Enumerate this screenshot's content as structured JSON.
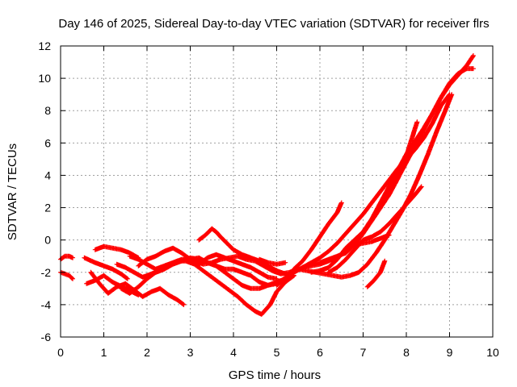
{
  "chart_data": {
    "type": "scatter",
    "title": "Day 146 of 2025, Sidereal Day-to-day VTEC variation (SDTVAR) for receiver flrs",
    "xlabel": "GPS time / hours",
    "ylabel": "SDTVAR / TECUs",
    "xlim": [
      0,
      10
    ],
    "ylim": [
      -6,
      12
    ],
    "xticks": [
      "0",
      "1",
      "2",
      "3",
      "4",
      "5",
      "6",
      "7",
      "8",
      "9",
      "10"
    ],
    "yticks": [
      "-6",
      "-4",
      "-2",
      "0",
      "2",
      "4",
      "6",
      "8",
      "10",
      "12"
    ],
    "grid": true,
    "marker": "+",
    "color": "#ff0000",
    "series": [
      {
        "x": [
          0.0,
          0.1,
          0.2,
          0.28
        ],
        "y": [
          -1.2,
          -1.0,
          -1.0,
          -1.1
        ]
      },
      {
        "x": [
          0.0,
          0.1,
          0.2,
          0.28
        ],
        "y": [
          -2.0,
          -2.1,
          -2.2,
          -2.4
        ]
      },
      {
        "x": [
          0.55,
          0.8,
          1.0,
          1.2,
          1.4,
          1.55
        ],
        "y": [
          -1.1,
          -1.4,
          -1.6,
          -1.8,
          -2.1,
          -2.4
        ]
      },
      {
        "x": [
          0.6,
          0.8,
          1.0,
          1.2,
          1.5,
          1.8
        ],
        "y": [
          -2.7,
          -2.5,
          -2.2,
          -2.6,
          -3.0,
          -3.4
        ]
      },
      {
        "x": [
          0.7,
          0.9,
          1.1,
          1.3,
          1.5,
          1.7,
          1.9,
          2.1,
          2.3,
          2.5,
          2.7,
          2.85
        ],
        "y": [
          -2.0,
          -2.7,
          -3.3,
          -2.9,
          -2.7,
          -3.1,
          -3.5,
          -3.2,
          -3.0,
          -3.4,
          -3.7,
          -4.0
        ]
      },
      {
        "x": [
          0.8,
          1.0,
          1.2,
          1.4,
          1.6,
          1.8
        ],
        "y": [
          -0.6,
          -0.4,
          -0.5,
          -0.6,
          -0.8,
          -1.1
        ]
      },
      {
        "x": [
          1.3,
          1.5,
          1.7,
          1.9,
          2.1,
          2.3,
          2.5,
          2.7,
          2.9,
          3.1,
          3.3,
          3.5,
          3.7,
          3.9,
          4.1,
          4.3,
          4.5,
          4.65,
          4.85,
          5.0,
          5.2,
          5.4
        ],
        "y": [
          -1.5,
          -1.7,
          -2.0,
          -2.3,
          -2.1,
          -1.9,
          -1.6,
          -1.3,
          -1.3,
          -1.5,
          -1.9,
          -2.3,
          -2.7,
          -3.1,
          -3.5,
          -4.0,
          -4.4,
          -4.6,
          -4.0,
          -3.2,
          -2.6,
          -2.2
        ]
      },
      {
        "x": [
          1.4,
          1.6,
          1.8,
          2.0,
          2.2,
          2.4,
          2.6,
          2.8,
          3.0,
          3.2,
          3.4,
          3.6,
          3.8,
          4.0,
          4.2,
          4.4,
          4.6,
          4.8,
          5.0,
          5.2
        ],
        "y": [
          -3.0,
          -3.3,
          -2.9,
          -2.4,
          -2.0,
          -1.8,
          -1.5,
          -1.3,
          -1.1,
          -1.2,
          -1.4,
          -1.6,
          -2.0,
          -2.4,
          -2.8,
          -3.0,
          -3.0,
          -2.8,
          -2.7,
          -2.5
        ]
      },
      {
        "x": [
          1.6,
          1.8,
          2.0,
          2.2,
          2.4,
          2.6,
          2.8,
          3.0,
          3.2,
          3.4,
          3.6,
          3.8,
          4.0,
          4.2,
          4.4,
          4.6,
          4.8,
          5.0,
          5.2
        ],
        "y": [
          -1.0,
          -1.2,
          -1.5,
          -1.8,
          -1.6,
          -1.4,
          -1.2,
          -1.2,
          -1.1,
          -1.4,
          -1.6,
          -1.8,
          -1.8,
          -2.0,
          -2.2,
          -2.6,
          -2.8,
          -2.6,
          -2.4
        ]
      },
      {
        "x": [
          1.8,
          2.0,
          2.2,
          2.4,
          2.6,
          2.8,
          3.0,
          3.2,
          3.4,
          3.6,
          3.8,
          4.0,
          4.2,
          4.4,
          4.6,
          4.8,
          5.0
        ],
        "y": [
          -1.6,
          -1.2,
          -1.0,
          -0.7,
          -0.5,
          -0.8,
          -1.2,
          -1.5,
          -1.1,
          -0.9,
          -1.1,
          -1.3,
          -1.5,
          -1.7,
          -2.0,
          -2.3,
          -2.4
        ]
      },
      {
        "x": [
          3.2,
          3.35,
          3.5,
          3.6,
          3.7,
          3.85,
          4.0,
          4.2,
          4.4,
          4.6,
          4.8,
          5.0,
          5.2,
          5.4
        ],
        "y": [
          0.0,
          0.3,
          0.7,
          0.5,
          0.2,
          -0.2,
          -0.6,
          -0.9,
          -1.1,
          -1.3,
          -1.6,
          -1.9,
          -2.1,
          -2.2
        ]
      },
      {
        "x": [
          3.1,
          3.3,
          3.5,
          3.7,
          3.9,
          4.1,
          4.3,
          4.5,
          4.7,
          4.9,
          5.1,
          5.3,
          5.5,
          5.7,
          5.9,
          6.1,
          6.3,
          6.5,
          6.7,
          6.9,
          7.1,
          7.3,
          7.5,
          7.7,
          7.9,
          8.1,
          8.3,
          8.5,
          8.7,
          8.9,
          9.05
        ],
        "y": [
          -1.3,
          -1.5,
          -1.4,
          -1.2,
          -1.1,
          -1.0,
          -1.2,
          -1.3,
          -1.6,
          -1.9,
          -2.1,
          -2.0,
          -1.8,
          -1.9,
          -2.0,
          -2.1,
          -2.2,
          -2.3,
          -2.2,
          -2.0,
          -1.5,
          -0.8,
          0.0,
          0.9,
          1.8,
          2.8,
          4.0,
          5.3,
          6.7,
          8.0,
          9.0
        ]
      },
      {
        "x": [
          4.6,
          4.8,
          5.0,
          5.2
        ],
        "y": [
          -1.2,
          -1.4,
          -1.5,
          -1.4
        ]
      },
      {
        "x": [
          5.0,
          5.2,
          5.4,
          5.6,
          5.8,
          6.0,
          6.2,
          6.4,
          6.6,
          6.8,
          7.0,
          7.2,
          7.4,
          7.6,
          7.8,
          8.0,
          8.2,
          8.4,
          8.6,
          8.8,
          9.0,
          9.2,
          9.4,
          9.55
        ],
        "y": [
          -2.8,
          -2.4,
          -2.0,
          -1.7,
          -1.5,
          -1.4,
          -1.2,
          -1.0,
          -0.8,
          -0.3,
          0.4,
          1.2,
          2.0,
          2.8,
          3.8,
          4.8,
          5.8,
          6.8,
          7.8,
          8.8,
          9.6,
          10.2,
          10.8,
          11.4
        ]
      },
      {
        "x": [
          5.2,
          5.4,
          5.6,
          5.8,
          6.0,
          6.2,
          6.4,
          6.6,
          6.8,
          7.0,
          7.2,
          7.4,
          7.6,
          7.8,
          8.0,
          8.2,
          8.4,
          8.6,
          8.8,
          9.0
        ],
        "y": [
          -2.3,
          -2.0,
          -1.7,
          -1.4,
          -1.1,
          -0.7,
          -0.2,
          0.4,
          1.0,
          1.6,
          2.3,
          3.0,
          3.7,
          4.4,
          5.0,
          5.6,
          6.3,
          7.2,
          8.3,
          9.0
        ]
      },
      {
        "x": [
          5.4,
          5.6,
          5.8,
          6.0,
          6.2,
          6.4,
          6.5
        ],
        "y": [
          -1.8,
          -1.3,
          -0.6,
          0.2,
          1.0,
          1.7,
          2.3
        ]
      },
      {
        "x": [
          5.6,
          5.8,
          6.0,
          6.2,
          6.4,
          6.6,
          6.8,
          7.0,
          7.2,
          7.4,
          7.6,
          7.8,
          8.0,
          8.2,
          8.4,
          8.6,
          8.8,
          9.0,
          9.2,
          9.4,
          9.55
        ],
        "y": [
          -1.7,
          -1.6,
          -1.5,
          -1.3,
          -1.1,
          -0.7,
          -0.2,
          0.5,
          1.3,
          2.3,
          3.3,
          4.3,
          5.3,
          6.1,
          6.9,
          7.8,
          8.8,
          9.7,
          10.3,
          10.6,
          10.6
        ]
      },
      {
        "x": [
          5.8,
          6.0,
          6.2,
          6.4,
          6.6,
          6.8,
          7.0,
          7.2,
          7.4,
          7.6,
          7.8,
          8.0,
          8.25
        ],
        "y": [
          -2.0,
          -1.9,
          -1.7,
          -1.2,
          -0.5,
          0.0,
          0.5,
          1.2,
          2.0,
          2.8,
          3.8,
          5.2,
          7.3
        ]
      },
      {
        "x": [
          6.2,
          6.4,
          6.6,
          6.8,
          7.0,
          7.2,
          7.4,
          7.6,
          7.8,
          8.0,
          8.2,
          8.35
        ],
        "y": [
          -2.0,
          -1.7,
          -1.2,
          -0.6,
          0.0,
          0.2,
          0.5,
          1.0,
          1.6,
          2.2,
          2.8,
          3.3
        ]
      },
      {
        "x": [
          6.8,
          7.0,
          7.2,
          7.4,
          7.6
        ],
        "y": [
          -0.3,
          -0.2,
          -0.1,
          0.1,
          0.3
        ]
      },
      {
        "x": [
          7.1,
          7.25,
          7.4,
          7.5
        ],
        "y": [
          -2.9,
          -2.5,
          -2.0,
          -1.3
        ]
      }
    ]
  }
}
